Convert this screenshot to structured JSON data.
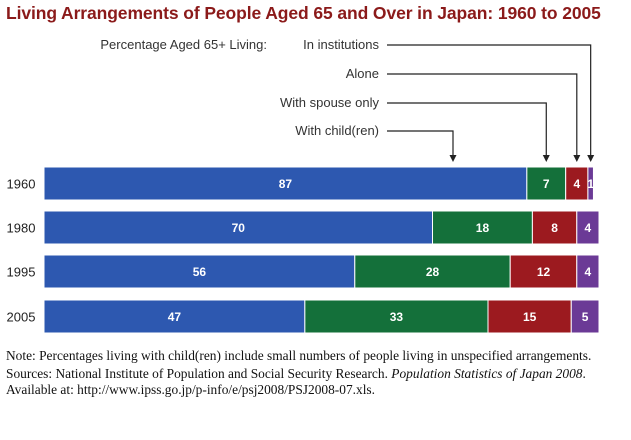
{
  "chart_data": {
    "type": "bar",
    "orientation": "horizontal",
    "stacked": true,
    "title": "Living Arrangements of People Aged 65 and Over in Japan: 1960 to 2005",
    "legend_title": "Percentage Aged 65+ Living:",
    "legend_placement": "top-right",
    "categories": [
      "1960",
      "1980",
      "1995",
      "2005"
    ],
    "series": [
      {
        "name": "With child(ren)",
        "color": "#2d58b0",
        "values": [
          87,
          70,
          56,
          47
        ]
      },
      {
        "name": "With spouse only",
        "color": "#14703a",
        "values": [
          7,
          18,
          28,
          33
        ]
      },
      {
        "name": "Alone",
        "color": "#9c1a1f",
        "values": [
          4,
          8,
          12,
          15
        ]
      },
      {
        "name": "In institutions",
        "color": "#6b3a96",
        "values": [
          1,
          4,
          4,
          5
        ]
      }
    ],
    "xlim": [
      0,
      100
    ],
    "grid": false
  },
  "notes": {
    "note": "Note: Percentages living with child(ren) include small numbers of people living in unspecified arrangements.",
    "sources_prefix": "Sources: National Institute of Population and Social Security Research. ",
    "sources_title": "Population Statistics of Japan 2008",
    "sources_suffix": ".",
    "available": "Available at: http://www.ipss.go.jp/p-info/e/psj2008/PSJ2008-07.xls."
  }
}
